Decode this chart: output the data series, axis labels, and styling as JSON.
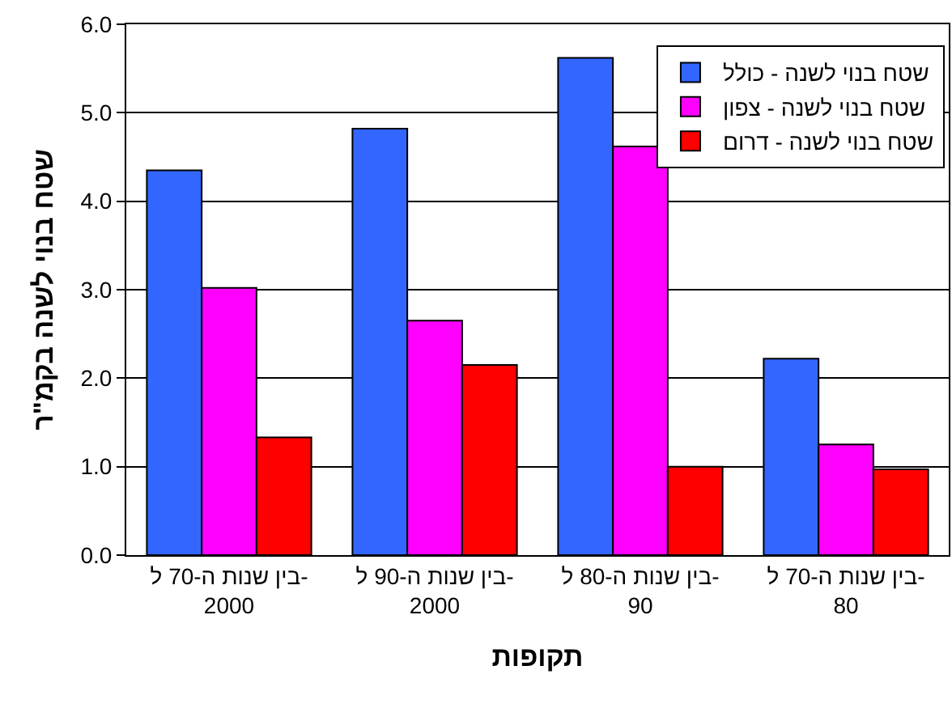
{
  "chart_data": {
    "type": "bar",
    "xlabel": "תקופות",
    "ylabel": "שטח בנוי לשנה בקמ\"ר",
    "categories": [
      "בין שנות ה-70 ל- 2000",
      "בין שנות ה-90 ל- 2000",
      "בין שנות ה-80 ל- 90",
      "בין שנות ה-70 ל- 80"
    ],
    "series": [
      {
        "name": "שטח בנוי לשנה - כולל",
        "color": "#3366ff",
        "values": [
          4.35,
          4.82,
          5.62,
          2.22
        ]
      },
      {
        "name": "שטח בנוי לשנה - צפון",
        "color": "#ff00ff",
        "values": [
          3.02,
          2.65,
          4.62,
          1.25
        ]
      },
      {
        "name": "שטח בנוי לשנה - דרום",
        "color": "#ff0000",
        "values": [
          1.33,
          2.15,
          1.0,
          0.97
        ]
      }
    ],
    "ylim": [
      0,
      6
    ],
    "yticks": [
      {
        "value": 0,
        "label": "0.0"
      },
      {
        "value": 1,
        "label": "1.0"
      },
      {
        "value": 2,
        "label": "2.0"
      },
      {
        "value": 3,
        "label": "3.0"
      },
      {
        "value": 4,
        "label": "4.0"
      },
      {
        "value": 5,
        "label": "5.0"
      },
      {
        "value": 6,
        "label": "6.0"
      }
    ],
    "grid": "y",
    "legend": "top right"
  }
}
